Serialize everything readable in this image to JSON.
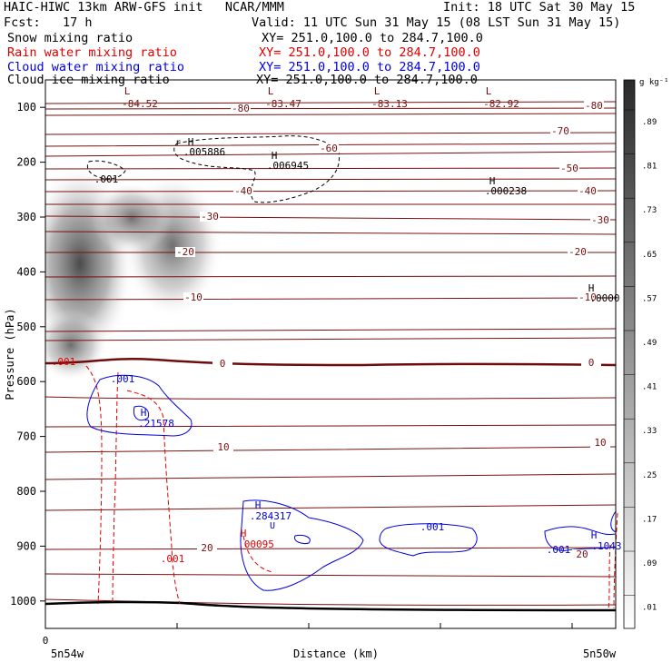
{
  "header": {
    "title_left": "HAIC-HIWC 13km ARW-GFS init   NCAR/MMM",
    "init": "Init: 18 UTC Sat 30 May 15",
    "fcst": "Fcst:   17 h",
    "valid": "Valid: 11 UTC Sun 31 May 15 (08 LST Sun 31 May 15)"
  },
  "fields": [
    {
      "name": "Snow mixing ratio",
      "xy": "XY= 251.0,100.0 to 284.7,100.0",
      "color": "#000000"
    },
    {
      "name": "Rain water mixing ratio",
      "xy": "XY= 251.0,100.0 to 284.7,100.0",
      "color": "#e00000"
    },
    {
      "name": "Cloud water mixing ratio",
      "xy": "XY= 251.0,100.0 to 284.7,100.0",
      "color": "#0000dd"
    },
    {
      "name": "Cloud ice mixing ratio",
      "xy": "XY= 251.0,100.0 to 284.7,100.0",
      "color": "#000000"
    }
  ],
  "colorbar": {
    "unit": "g kg⁻¹",
    "labels": [
      ".89",
      ".81",
      ".73",
      ".65",
      ".57",
      ".49",
      ".41",
      ".33",
      ".25",
      ".17",
      ".09",
      ".01"
    ]
  },
  "chart_data": {
    "type": "heatmap",
    "ylabel": "Pressure (hPa)",
    "xlabel": "Distance (km)",
    "yticks": [
      100,
      200,
      300,
      400,
      500,
      600,
      700,
      800,
      900,
      1000
    ],
    "ylim": [
      1050,
      50
    ],
    "x_start_label": "0",
    "x_left_label": "5n54w",
    "x_right_label": "5n50w",
    "temperature_contour_labels": [
      "-80",
      "-70",
      "-60",
      "-50",
      "-40",
      "-30",
      "-20",
      "-10",
      "0",
      "10",
      "20",
      "-80",
      "-40",
      "-30",
      "-20",
      "-10",
      "0",
      "10",
      "20"
    ],
    "lows": [
      {
        "letter": "L",
        "value": "-84.52"
      },
      {
        "letter": "L",
        "value": "-83.47"
      },
      {
        "letter": "L",
        "value": "-83.13"
      },
      {
        "letter": "L",
        "value": "-82.92"
      }
    ],
    "highs_black": [
      {
        "letter": "H",
        "value": ".005886"
      },
      {
        "letter": "H",
        "value": ".006945"
      },
      {
        "letter": "H",
        "value": ".000238"
      },
      {
        "letter": "H",
        "value": ".0000"
      }
    ],
    "highs_blue": [
      {
        "letter": "H",
        "value": ".21578"
      },
      {
        "letter": "H",
        "value": ".284317"
      },
      {
        "letter": "H",
        "value": ".1043"
      }
    ],
    "highs_red": [
      {
        "letter": "H",
        "value": ".00095"
      }
    ],
    "contour_value_labels": {
      "ice": ".001",
      "rain_left": ".001",
      "rain_right": ".001",
      "cloud_top": ".001",
      "cloud_mid": ".001",
      "cloud_right": ".001"
    }
  }
}
